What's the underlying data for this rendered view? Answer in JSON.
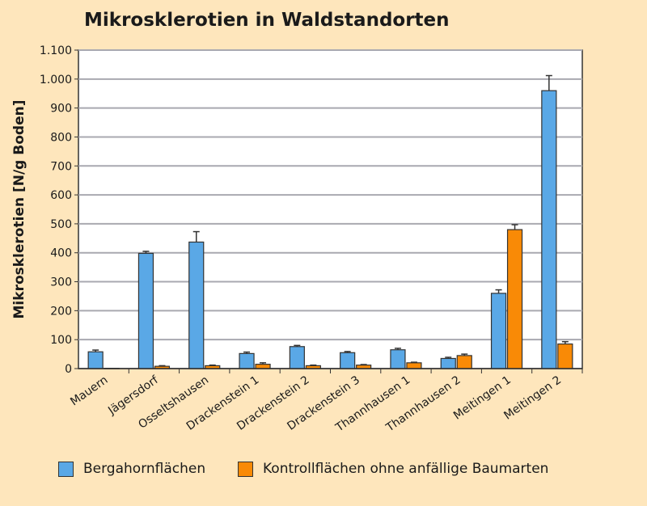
{
  "chart_data": {
    "type": "bar",
    "title": "Mikrosklerotien in Waldstandorten",
    "xlabel": "",
    "ylabel": "Mikrosklerotien [N/g Boden]",
    "ylim": [
      0,
      1100
    ],
    "yticks": [
      0,
      100,
      200,
      300,
      400,
      500,
      600,
      700,
      800,
      900,
      1000,
      1100
    ],
    "ytick_labels": [
      "0",
      "100",
      "200",
      "300",
      "400",
      "500",
      "600",
      "700",
      "800",
      "900",
      "1.000",
      "1.100"
    ],
    "grid": true,
    "legend_position": "bottom",
    "categories": [
      "Mauern",
      "Jägersdorf",
      "Osseltshausen",
      "Drackenstein 1",
      "Drackenstein 2",
      "Drackenstein 3",
      "Thannhausen 1",
      "Thannhausen 2",
      "Meitingen 1",
      "Meitingen 2"
    ],
    "series": [
      {
        "name": "Bergahornflächen",
        "color": "#5aa8e6",
        "values": [
          58,
          398,
          437,
          52,
          76,
          55,
          65,
          35,
          260,
          960
        ],
        "error": [
          6,
          7,
          36,
          5,
          4,
          4,
          5,
          4,
          12,
          52
        ]
      },
      {
        "name": "Kontrollflächen ohne anfällige Baumarten",
        "color": "#f98a06",
        "values": [
          1,
          8,
          10,
          15,
          10,
          12,
          20,
          45,
          480,
          85
        ],
        "error": [
          0,
          2,
          2,
          5,
          2,
          2,
          2,
          5,
          17,
          8
        ]
      }
    ]
  }
}
